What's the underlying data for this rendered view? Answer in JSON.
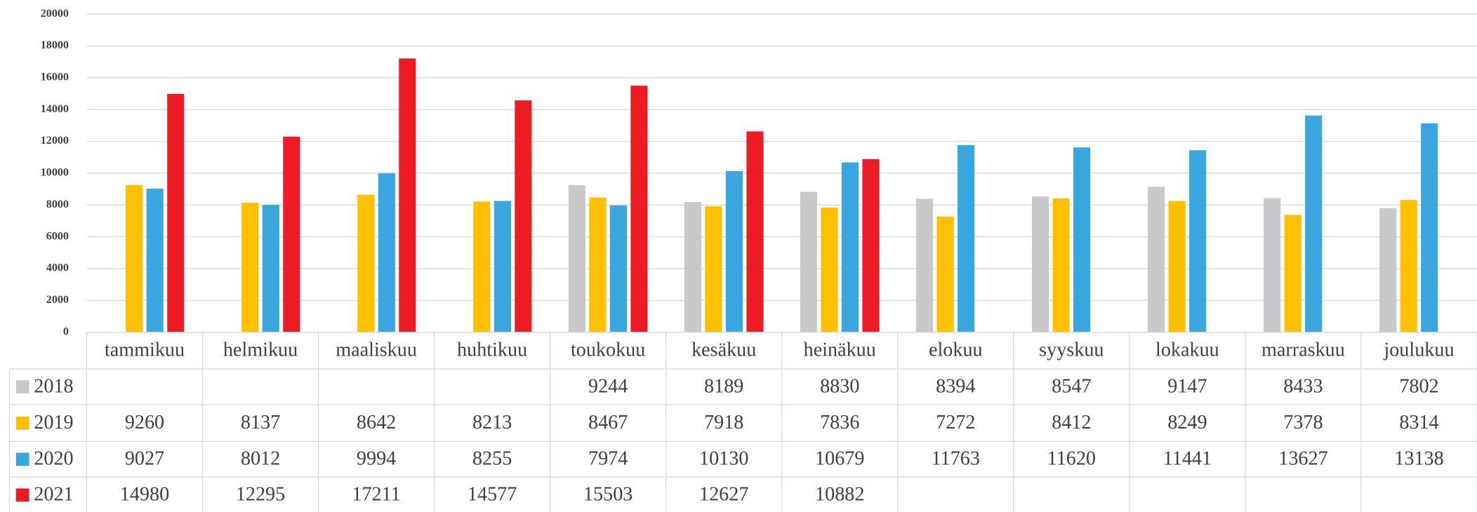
{
  "chart_data": {
    "type": "bar",
    "categories": [
      "tammikuu",
      "helmikuu",
      "maaliskuu",
      "huhtikuu",
      "toukokuu",
      "kesäkuu",
      "heinäkuu",
      "elokuu",
      "syyskuu",
      "lokakuu",
      "marraskuu",
      "joulukuu"
    ],
    "series": [
      {
        "name": "2018",
        "color": "#c9c9cb",
        "values": [
          null,
          null,
          null,
          null,
          9244,
          8189,
          8830,
          8394,
          8547,
          9147,
          8433,
          7802
        ]
      },
      {
        "name": "2019",
        "color": "#ffc000",
        "values": [
          9260,
          8137,
          8642,
          8213,
          8467,
          7918,
          7836,
          7272,
          8412,
          8249,
          7378,
          8314
        ]
      },
      {
        "name": "2020",
        "color": "#3aa6e0",
        "values": [
          9027,
          8012,
          9994,
          8255,
          7974,
          10130,
          10679,
          11763,
          11620,
          11441,
          13627,
          13138
        ]
      },
      {
        "name": "2021",
        "color": "#ed1c24",
        "values": [
          14980,
          12295,
          17211,
          14577,
          15503,
          12627,
          10882,
          null,
          null,
          null,
          null,
          null
        ]
      }
    ],
    "ylim": [
      0,
      20000
    ],
    "yticks": [
      0,
      2000,
      4000,
      6000,
      8000,
      10000,
      12000,
      14000,
      16000,
      18000,
      20000
    ],
    "grid": true
  }
}
